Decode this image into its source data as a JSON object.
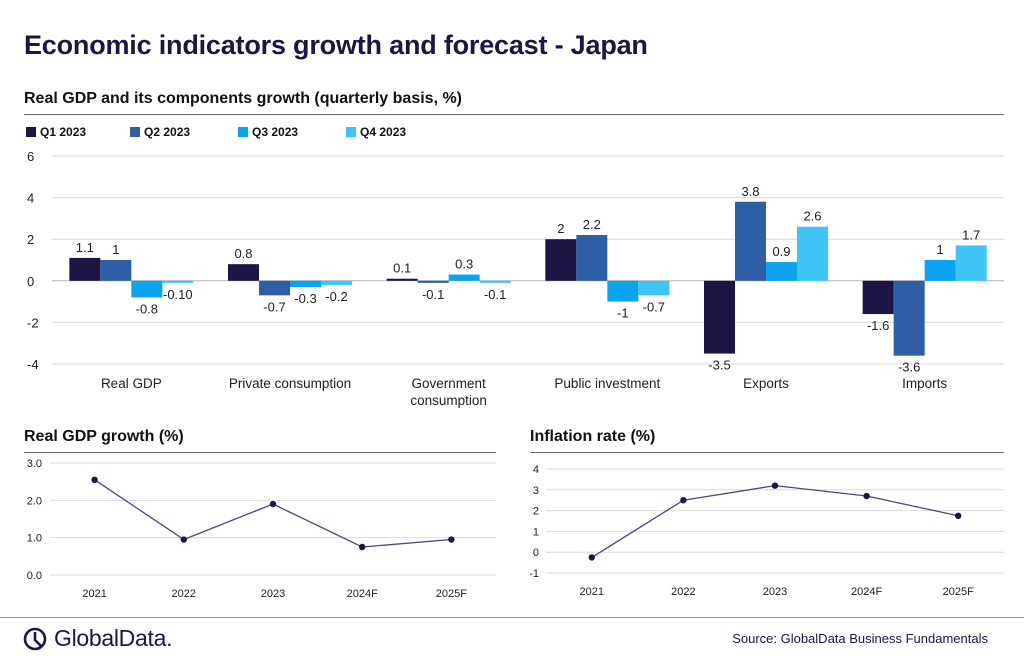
{
  "page": {
    "title": "Economic indicators growth and forecast - Japan",
    "source": "Source: GlobalData Business Fundamentals",
    "logo_text": "GlobalData."
  },
  "chart_data": [
    {
      "id": "quarterly",
      "type": "bar",
      "title": "Real GDP and its components growth (quarterly basis, %)",
      "categories": [
        "Real GDP",
        "Private consumption",
        "Government consumption",
        "Public investment",
        "Exports",
        "Imports"
      ],
      "category_lines": [
        [
          "Real GDP"
        ],
        [
          "Private consumption"
        ],
        [
          "Government",
          "consumption"
        ],
        [
          "Public investment"
        ],
        [
          "Exports"
        ],
        [
          "Imports"
        ]
      ],
      "series": [
        {
          "name": "Q1 2023",
          "color": "#1f1446",
          "values": [
            1.1,
            0.8,
            0.1,
            2,
            -3.5,
            -1.6
          ],
          "labels": [
            "1.1",
            "0.8",
            "0.1",
            "2",
            "-3.5",
            "-1.6"
          ]
        },
        {
          "name": "Q2 2023",
          "color": "#2e5ea6",
          "values": [
            1,
            -0.7,
            -0.1,
            2.2,
            3.8,
            -3.6
          ],
          "labels": [
            "1",
            "-0.7",
            "-0.1",
            "2.2",
            "3.8",
            "-3.6"
          ]
        },
        {
          "name": "Q3 2023",
          "color": "#0aa3f0",
          "values": [
            -0.8,
            -0.3,
            0.3,
            -1,
            0.9,
            1
          ],
          "labels": [
            "-0.8",
            "-0.3",
            "0.3",
            "-1",
            "0.9",
            "1"
          ]
        },
        {
          "name": "Q4 2023",
          "color": "#3ec5f5",
          "values": [
            -0.1,
            -0.2,
            -0.1,
            -0.7,
            2.6,
            1.7
          ],
          "labels": [
            "-0.10",
            "-0.2",
            "-0.1",
            "-0.7",
            "2.6",
            "1.7"
          ]
        }
      ],
      "ylim": [
        -4,
        6
      ],
      "yticks": [
        -4,
        -2,
        0,
        2,
        4,
        6
      ],
      "ytick_labels": [
        "-4",
        "-2",
        "0",
        "2",
        "4",
        "6"
      ],
      "grid": true,
      "legend": "top-left"
    },
    {
      "id": "gdp",
      "type": "line",
      "title": "Real GDP growth (%)",
      "x": [
        "2021",
        "2022",
        "2023",
        "2024F",
        "2025F"
      ],
      "values": [
        2.55,
        0.95,
        1.9,
        0.75,
        0.95
      ],
      "ylim": [
        0,
        3
      ],
      "yticks": [
        0,
        1,
        2,
        3
      ],
      "ytick_labels": [
        "0.0",
        "1.0",
        "2.0",
        "3.0"
      ],
      "color": "#4a4a7a",
      "grid": true
    },
    {
      "id": "inflation",
      "type": "line",
      "title": "Inflation rate  (%)",
      "x": [
        "2021",
        "2022",
        "2023",
        "2024F",
        "2025F"
      ],
      "values": [
        -0.25,
        2.5,
        3.2,
        2.7,
        1.75
      ],
      "ylim": [
        -1,
        4
      ],
      "yticks": [
        -1,
        0,
        1,
        2,
        3,
        4
      ],
      "ytick_labels": [
        "-1",
        "0",
        "1",
        "2",
        "3",
        "4"
      ],
      "color": "#4a4a7a",
      "grid": true
    }
  ]
}
